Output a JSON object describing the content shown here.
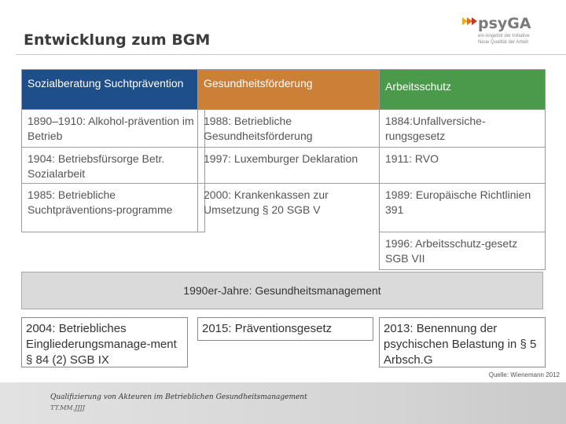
{
  "slide": {
    "title": "Entwicklung zum BGM"
  },
  "logo": {
    "name": "psyGA",
    "tagline_1": "ein Angebot der Initiative",
    "tagline_2": "Neue Qualität der Arbeit"
  },
  "columns": [
    {
      "header": "Sozialberatung Suchtprävention",
      "color": "#1e4f8a",
      "cells": [
        "1890–1910: Alkohol-prävention im Betrieb",
        "1904: Betriebsfürsorge Betr. Sozialarbeit",
        "1985: Betriebliche Suchtpräventions-programme"
      ]
    },
    {
      "header": "Gesundheitsförderung",
      "color": "#cc7f36",
      "cells": [
        "1988: Betriebliche Gesundheitsförderung",
        "1997: Luxemburger Deklaration",
        "2000: Krankenkassen zur Umsetzung § 20 SGB V"
      ]
    },
    {
      "header": "Arbeitsschutz",
      "color": "#4b9a4c",
      "cells": [
        "1884:Unfallversiche-rungsgesetz",
        "1911: RVO",
        "1989: Europäische Richtlinien 391",
        "1996: Arbeitsschutz-gesetz SGB VII"
      ]
    }
  ],
  "band": {
    "text": "1990er-Jahre: Gesundheitsmanagement"
  },
  "boxes": [
    "2004: Betriebliches Eingliederungsmanage-ment § 84 (2) SGB IX",
    "2015: Präventionsgesetz",
    "2013: Benennung der psychischen Belastung in § 5 Arbsch.G"
  ],
  "source": "Quelle: Wienemann 2012",
  "footer": {
    "line1": "Qualifizierung von Akteuren im Betrieblichen Gesundheitsmanagement",
    "line2": "TT.MM.JJJJ"
  }
}
